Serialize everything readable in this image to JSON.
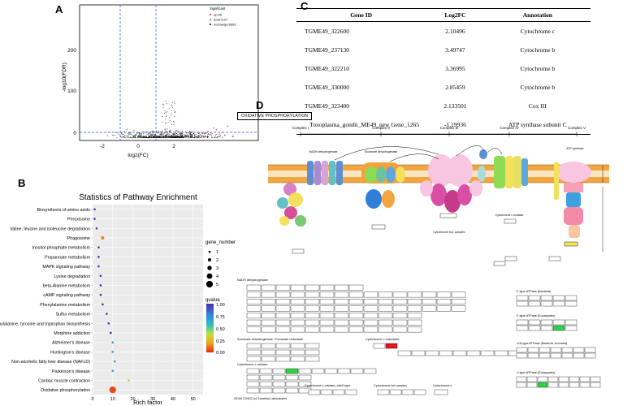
{
  "panels": {
    "a": "A",
    "b": "B",
    "c": "C",
    "d": "D"
  },
  "volcano": {
    "ylabel": "-log10(FDR)",
    "xlabel": "log2(FC)",
    "yticks": [
      "0",
      "100",
      "200"
    ],
    "xticks": [
      "-2",
      "0",
      "2"
    ],
    "legend_title": "Significant",
    "legend_items": [
      {
        "label": "up:95",
        "color": "#e31a1c"
      },
      {
        "label": "down:127",
        "color": "#33a02c"
      },
      {
        "label": "nochange:6692",
        "color": "#000000"
      }
    ]
  },
  "enrichment": {
    "title": "Statistics of Pathway Enrichment",
    "xlabel": "Rich factor",
    "xticks": [
      "0",
      "10",
      "20",
      "30",
      "40",
      "50"
    ],
    "size_legend_title": "gene_number",
    "size_legend": [
      "1",
      "2",
      "3",
      "4",
      "5"
    ],
    "color_legend_title": "qvalue",
    "color_legend_ticks": [
      "1.00",
      "0.75",
      "0.50",
      "0.25",
      "0.00"
    ],
    "pathways": [
      "Biosynthesis of amino acids",
      "Peroxisome",
      "Valine, leucine and isoleucine degradation",
      "Phagosome",
      "Inositol phosphate metabolism",
      "Propanoate metabolism",
      "MAPK signaling pathway",
      "Lysine degradation",
      "beta-Alanine metabolism",
      "cAMP signaling pathway",
      "Phenylalanine metabolism",
      "Sulfur metabolism",
      "Phenylalanine, tyrosine and tryptophan biosynthesis",
      "Morphine addiction",
      "Alzheimer's disease",
      "Huntington's disease",
      "Non-alcoholic fatty liver disease (NAFLD)",
      "Parkinson's disease",
      "Cardiac muscle contraction",
      "Oxidative phosphorylation"
    ]
  },
  "chart_data": [
    {
      "type": "scatter",
      "xlabel": "log2(FC)",
      "ylabel": "-log10(FDR)",
      "xlim": [
        -3.2,
        3.2
      ],
      "ylim": [
        -5,
        250
      ],
      "thresholds": {
        "x": [
          -1,
          1
        ],
        "y": 1.3
      },
      "series": [
        {
          "name": "up:95",
          "color": "#e31a1c",
          "x": [
            1.2,
            1.4,
            1.5,
            1.7,
            1.9,
            2.1,
            1.3,
            1.6,
            2.0,
            1.1,
            1.8,
            2.3
          ],
          "y": [
            8,
            12,
            6,
            15,
            10,
            22,
            9,
            18,
            5,
            4,
            7,
            3
          ]
        },
        {
          "name": "down:127",
          "color": "#33a02c",
          "x": [
            -1.2,
            -1.4,
            -1.6,
            -1.3,
            -1.8,
            -2.0,
            -1.5,
            -1.1,
            -1.7,
            -2.2,
            -1.9,
            -1.25
          ],
          "y": [
            6,
            9,
            12,
            4,
            7,
            5,
            16,
            3,
            8,
            4,
            10,
            14
          ]
        }
      ],
      "nochange_count": 6692
    },
    {
      "type": "scatter",
      "title": "Statistics of Pathway Enrichment",
      "xlabel": "Rich factor",
      "xlim": [
        0,
        55
      ],
      "categories": [
        "Biosynthesis of amino acids",
        "Peroxisome",
        "Valine, leucine and isoleucine degradation",
        "Phagosome",
        "Inositol phosphate metabolism",
        "Propanoate metabolism",
        "MAPK signaling pathway",
        "Lysine degradation",
        "beta-Alanine metabolism",
        "cAMP signaling pathway",
        "Phenylalanine metabolism",
        "Sulfur metabolism",
        "Phenylalanine, tyrosine and tryptophan biosynthesis",
        "Morphine addiction",
        "Alzheimer's disease",
        "Huntington's disease",
        "Non-alcoholic fatty liver disease (NAFLD)",
        "Parkinson's disease",
        "Cardiac muscle contraction",
        "Oxidative phosphorylation"
      ],
      "rich_factor": [
        1,
        1,
        2,
        5,
        3,
        3,
        3,
        4,
        4,
        4,
        5,
        7,
        8,
        9,
        10,
        10,
        11,
        10,
        18,
        10
      ],
      "gene_number": [
        1,
        1,
        1,
        2,
        1,
        1,
        1,
        1,
        1,
        1,
        1,
        1,
        1,
        1,
        1,
        1,
        1,
        1,
        1,
        5
      ],
      "qvalue": [
        1.0,
        1.0,
        1.0,
        0.15,
        1.0,
        1.0,
        1.0,
        1.0,
        1.0,
        1.0,
        1.0,
        1.0,
        1.0,
        1.0,
        0.7,
        0.7,
        0.7,
        0.7,
        0.3,
        0.05
      ]
    }
  ],
  "gene_table": {
    "headers": [
      "Gene ID",
      "Log2FC",
      "Annotation"
    ],
    "rows": [
      {
        "id": "TGME49_322600",
        "fc": "2.10496",
        "ann": "Cytochrome c"
      },
      {
        "id": "TGME49_237130",
        "fc": "3.49747",
        "ann": "Cytochrome b"
      },
      {
        "id": "TGME49_322210",
        "fc": "3.36995",
        "ann": "Cytochrome b"
      },
      {
        "id": "TGME49_330000",
        "fc": "2.85459",
        "ann": "Cytochrome b"
      },
      {
        "id": "TGME49_323400",
        "fc": "2.133501",
        "ann": "Cox III"
      },
      {
        "id": "Toxoplasma_gondii_ME49_new Gene_1265",
        "fc": "-1.19936",
        "ann": "ATP synthase subunit C"
      }
    ]
  },
  "kegg": {
    "title": "OXIDATIVE PHOSPHORYLATION",
    "complexes": [
      "Complex I",
      "Complex II",
      "Complex III",
      "Complex IV",
      "Complex V"
    ],
    "enzymes": [
      "NADH dehydrogenase",
      "Succinate dehydrogenase",
      "Cytochrome bc1 complex",
      "Cytochrome c oxidase",
      "ATP synthase"
    ],
    "section_labels": [
      "NADH dehydrogenase",
      "Succinate dehydrogenase / Fumarate reductase",
      "Cytochrome c reductase",
      "Cytochrome c oxidase",
      "Cytochrome c oxidase, cbb3-type",
      "Cytochrome bd complex",
      "Cytochrome c",
      "F-type ATPase (Bacteria)",
      "F-type ATPase (Eukaryotes)",
      "V/A-type ATPase (Bacteria, Archaea)",
      "V-type ATPase (Eukaryotes)"
    ],
    "copyright": "00190 7/29/22 (c) Kanehisa Laboratories"
  }
}
